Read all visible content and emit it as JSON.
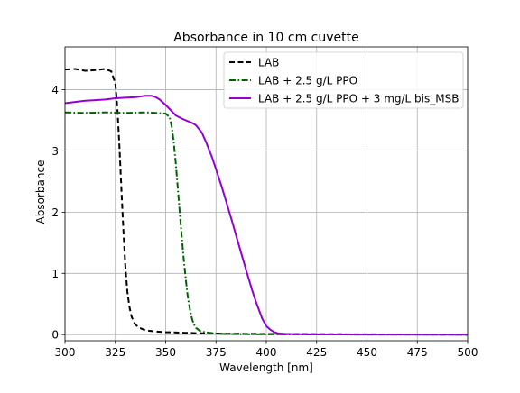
{
  "chart_data": {
    "type": "line",
    "title": "Absorbance in 10 cm cuvette",
    "xlabel": "Wavelength [nm]",
    "ylabel": "Absorbance",
    "xlim": [
      300,
      500
    ],
    "ylim": [
      -0.1,
      4.7
    ],
    "xticks": [
      300,
      325,
      350,
      375,
      400,
      425,
      450,
      475,
      500
    ],
    "yticks": [
      0,
      1,
      2,
      3,
      4
    ],
    "grid": true,
    "legend_position": "top-right",
    "series": [
      {
        "name": "LAB",
        "color": "#000000",
        "style": "dashed",
        "x": [
          300,
          305,
          310,
          315,
          320,
          323,
          325,
          326,
          327,
          328,
          329,
          330,
          331,
          332,
          333,
          334,
          335,
          337,
          340,
          345,
          350,
          360,
          370,
          380,
          400,
          450,
          500
        ],
        "y": [
          4.33,
          4.34,
          4.31,
          4.32,
          4.34,
          4.3,
          4.1,
          3.7,
          3.1,
          2.4,
          1.7,
          1.1,
          0.7,
          0.45,
          0.3,
          0.22,
          0.16,
          0.11,
          0.07,
          0.05,
          0.04,
          0.03,
          0.02,
          0.015,
          0.01,
          0.005,
          0.0
        ]
      },
      {
        "name": "LAB + 2.5 g/L PPO",
        "color": "#006400",
        "style": "dashdot",
        "x": [
          300,
          310,
          320,
          330,
          340,
          345,
          350,
          352,
          353,
          354,
          355,
          356,
          357,
          358,
          359,
          360,
          361,
          362,
          363,
          364,
          365,
          367,
          370,
          375,
          380,
          400,
          450,
          500
        ],
        "y": [
          3.63,
          3.62,
          3.63,
          3.62,
          3.63,
          3.62,
          3.61,
          3.55,
          3.4,
          3.15,
          2.8,
          2.4,
          2.0,
          1.6,
          1.22,
          0.9,
          0.62,
          0.42,
          0.27,
          0.17,
          0.11,
          0.06,
          0.035,
          0.02,
          0.01,
          0.005,
          0.002,
          0.0
        ]
      },
      {
        "name": "LAB + 2.5 g/L PPO + 3 mg/L bis_MSB",
        "color": "#9400D3",
        "style": "solid",
        "x": [
          300,
          305,
          310,
          315,
          320,
          325,
          330,
          335,
          340,
          343,
          345,
          347,
          350,
          353,
          355,
          358,
          360,
          363,
          365,
          368,
          370,
          373,
          375,
          378,
          380,
          383,
          385,
          388,
          390,
          393,
          395,
          398,
          400,
          402,
          404,
          406,
          410,
          420,
          450,
          500
        ],
        "y": [
          3.78,
          3.8,
          3.82,
          3.83,
          3.84,
          3.86,
          3.87,
          3.88,
          3.9,
          3.9,
          3.88,
          3.84,
          3.75,
          3.65,
          3.58,
          3.53,
          3.5,
          3.46,
          3.42,
          3.3,
          3.15,
          2.9,
          2.7,
          2.4,
          2.18,
          1.85,
          1.62,
          1.28,
          1.05,
          0.72,
          0.52,
          0.26,
          0.14,
          0.08,
          0.04,
          0.02,
          0.01,
          0.005,
          0.002,
          0.0
        ]
      }
    ]
  }
}
